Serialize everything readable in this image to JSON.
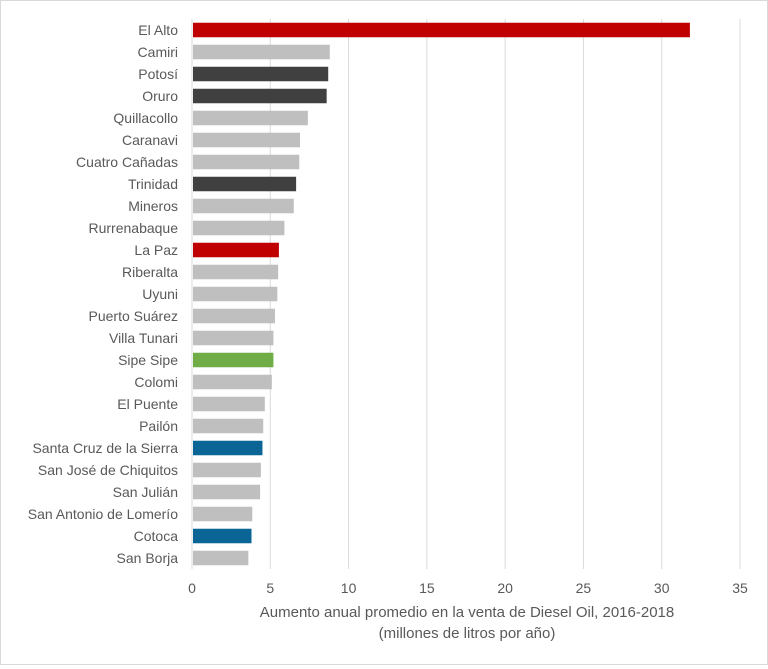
{
  "chart_data": {
    "type": "bar",
    "orientation": "horizontal",
    "categories": [
      "El Alto",
      "Camiri",
      "Potosí",
      "Oruro",
      "Quillacollo",
      "Caranavi",
      "Cuatro Cañadas",
      "Trinidad",
      "Mineros",
      "Rurrenabaque",
      "La Paz",
      "Riberalta",
      "Uyuni",
      "Puerto Suárez",
      "Villa Tunari",
      "Sipe Sipe",
      "Colomi",
      "El Puente",
      "Pailón",
      "Santa Cruz de la Sierra",
      "San José de Chiquitos",
      "San Julián",
      "San Antonio de Lomerío",
      "Cotoca",
      "San Borja"
    ],
    "values": [
      31.8,
      8.8,
      8.7,
      8.6,
      7.4,
      6.9,
      6.85,
      6.65,
      6.5,
      5.9,
      5.55,
      5.5,
      5.45,
      5.3,
      5.2,
      5.2,
      5.1,
      4.65,
      4.55,
      4.5,
      4.4,
      4.35,
      3.85,
      3.8,
      3.6
    ],
    "colors": [
      "#c00000",
      "#bfbfbf",
      "#404040",
      "#404040",
      "#bfbfbf",
      "#bfbfbf",
      "#bfbfbf",
      "#404040",
      "#bfbfbf",
      "#bfbfbf",
      "#c00000",
      "#bfbfbf",
      "#bfbfbf",
      "#bfbfbf",
      "#bfbfbf",
      "#70ad47",
      "#bfbfbf",
      "#bfbfbf",
      "#bfbfbf",
      "#0a6496",
      "#bfbfbf",
      "#bfbfbf",
      "#bfbfbf",
      "#0a6496",
      "#bfbfbf"
    ],
    "xlim": [
      0,
      35
    ],
    "xticks": [
      0,
      5,
      10,
      15,
      20,
      25,
      30,
      35
    ],
    "xlabel_line1": "Aumento anual promedio en la venta de Diesel Oil, 2016-2018",
    "xlabel_line2": "(millones de litros por año)",
    "grid": "vertical",
    "gridline_color": "#d9d9d9"
  }
}
